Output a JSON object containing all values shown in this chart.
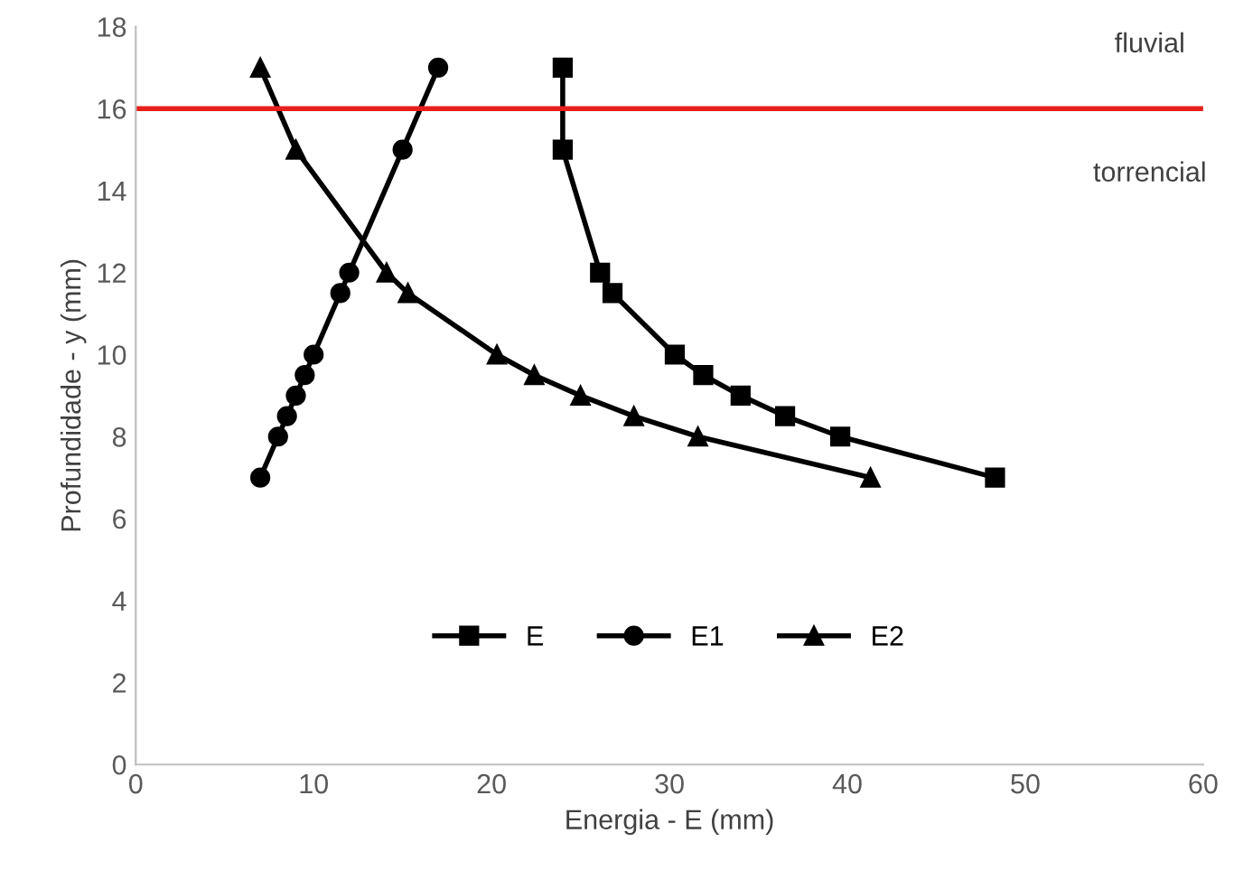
{
  "chart_data": {
    "type": "line",
    "xlabel": "Energia - E (mm)",
    "ylabel": "Profundidade - y (mm)",
    "xlim": [
      0,
      60
    ],
    "xticks": [
      0,
      10,
      20,
      30,
      40,
      50,
      60
    ],
    "ylim": [
      0,
      18
    ],
    "yticks": [
      0,
      2,
      4,
      6,
      8,
      10,
      12,
      14,
      16,
      18
    ],
    "grid": false,
    "legend": "bottom",
    "line_style": "solid",
    "series": [
      {
        "name": "E",
        "color": "#000000",
        "marker": "square",
        "x": [
          24.0,
          24.0,
          26.1,
          26.8,
          30.3,
          31.9,
          34.0,
          36.5,
          39.6,
          48.3
        ],
        "values": [
          17,
          15,
          12,
          11.5,
          10,
          9.5,
          9,
          8.5,
          8,
          7
        ]
      },
      {
        "name": "E1",
        "color": "#000000",
        "marker": "circle",
        "x": [
          17,
          15,
          12,
          11.5,
          10,
          9.5,
          9,
          8.5,
          8,
          7
        ],
        "values": [
          17,
          15,
          12,
          11.5,
          10,
          9.5,
          9,
          8.5,
          8,
          7
        ]
      },
      {
        "name": "E2",
        "color": "#000000",
        "marker": "triangle",
        "x": [
          7.0,
          9.0,
          14.1,
          15.3,
          20.3,
          22.4,
          25.0,
          28.0,
          31.6,
          41.3
        ],
        "values": [
          17,
          15,
          12,
          11.5,
          10,
          9.5,
          9,
          8.5,
          8,
          7
        ]
      }
    ],
    "ref_lines": [
      {
        "axis": "y",
        "value": 16,
        "color": "#e8201c",
        "line_style": "solid"
      }
    ],
    "annotations": [
      "fluvial",
      "torrencial"
    ]
  }
}
